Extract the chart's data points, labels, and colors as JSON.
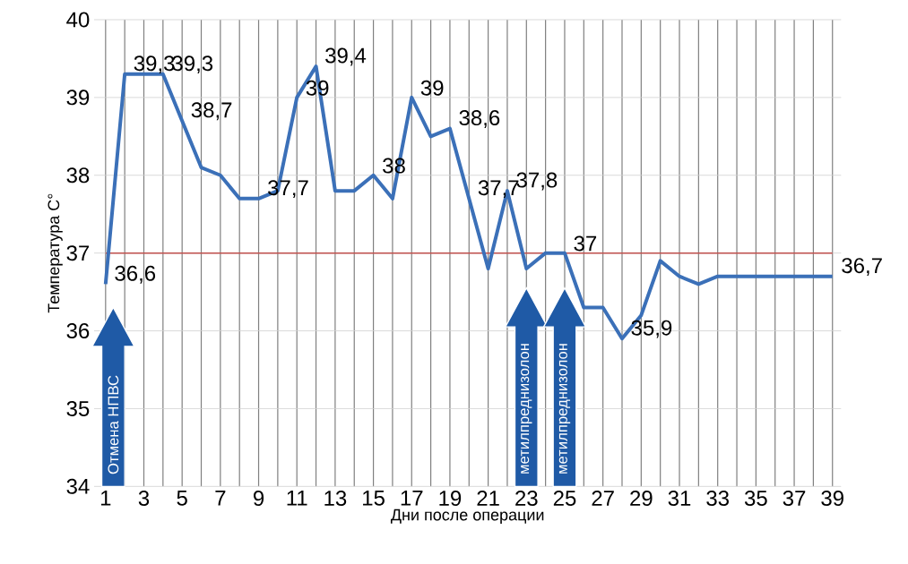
{
  "chart_data": {
    "type": "line",
    "xlabel": "Дни после операции",
    "ylabel": "Температура C°",
    "categories": [
      "1",
      null,
      "3",
      null,
      "5",
      null,
      "7",
      null,
      "9",
      null,
      "11",
      null,
      "13",
      null,
      "15",
      null,
      "17",
      null,
      "19",
      null,
      "21",
      null,
      "23",
      null,
      "25",
      null,
      "27",
      null,
      "29",
      null,
      "31",
      null,
      "33",
      null,
      "35",
      null,
      "37",
      null,
      "39"
    ],
    "series": [
      {
        "color": "#3b70b8",
        "values": [
          36.6,
          39.3,
          39.3,
          39.3,
          38.7,
          38.1,
          38.0,
          37.7,
          37.7,
          37.8,
          39.0,
          39.4,
          37.8,
          37.8,
          38.0,
          37.7,
          39.0,
          38.5,
          38.6,
          37.7,
          36.8,
          37.8,
          36.8,
          37.0,
          37.0,
          36.3,
          36.3,
          35.9,
          36.2,
          36.9,
          36.7,
          36.6,
          36.7,
          36.7,
          36.7,
          36.7,
          36.7,
          36.7,
          36.7
        ],
        "value_labels": [
          "36,6",
          "39,3",
          null,
          "39,3",
          "38,7",
          null,
          null,
          null,
          "37,7",
          null,
          "39",
          "39,4",
          null,
          null,
          "38",
          null,
          "39",
          null,
          "38,6",
          "37,7",
          null,
          "37,8",
          null,
          null,
          "37",
          null,
          null,
          "35,9",
          null,
          null,
          null,
          null,
          null,
          null,
          null,
          null,
          null,
          null,
          "36,7"
        ]
      }
    ],
    "ylim": [
      34,
      40
    ],
    "yticks": [
      34,
      35,
      36,
      37,
      38,
      39,
      40
    ],
    "grid": true,
    "marker": "none",
    "line_style": "solid",
    "ref_lines": [
      {
        "axis": "y",
        "value": 37,
        "color": "#c0504d"
      }
    ],
    "annotations": [
      "Отмена НПВС",
      "метилпреднизолон",
      "метилпреднизолон"
    ]
  }
}
